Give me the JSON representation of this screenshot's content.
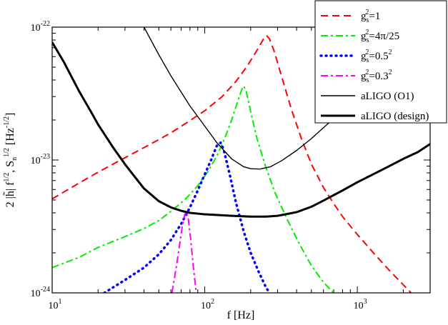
{
  "chart_data": {
    "type": "line",
    "title": "",
    "xscale": "log",
    "yscale": "log",
    "xlim": [
      10,
      3000
    ],
    "ylim": [
      1e-24,
      1e-22
    ],
    "xlabel": "f [Hz]",
    "ylabel": "2 |h̃| f^{1/2}, S_n^{1/2} [Hz^{-1/2}]",
    "ylabel_parts": {
      "p1": "2 |h̃| f",
      "e1": "1/2",
      "p2": ",  S",
      "s1": "n",
      "e2": "1/2",
      "p3": "  [Hz",
      "e3": "-1/2",
      "p4": "]"
    },
    "x_ticks": [
      {
        "value": 10,
        "base": "10",
        "exp": "1"
      },
      {
        "value": 100,
        "base": "10",
        "exp": "2"
      },
      {
        "value": 1000,
        "base": "10",
        "exp": "3"
      }
    ],
    "y_ticks": [
      {
        "value": 1e-24,
        "base": "10",
        "exp": "-24"
      },
      {
        "value": 1e-23,
        "base": "10",
        "exp": "-23"
      },
      {
        "value": 1e-22,
        "base": "10",
        "exp": "-22"
      }
    ],
    "legend_position": "top-right",
    "series": [
      {
        "name": "gs2=1",
        "label_base": "g",
        "label_sub": "s",
        "label_sup": "2",
        "label_rest": "=1",
        "color": "#ff0000",
        "style": "dashed",
        "points": [
          [
            10,
            5.1e-24
          ],
          [
            15,
            6.7e-24
          ],
          [
            20,
            8.1e-24
          ],
          [
            30,
            1.04e-23
          ],
          [
            40,
            1.24e-23
          ],
          [
            60,
            1.6e-23
          ],
          [
            80,
            1.98e-23
          ],
          [
            100,
            2.35e-23
          ],
          [
            130,
            3e-23
          ],
          [
            160,
            3.9e-23
          ],
          [
            190,
            5.1e-23
          ],
          [
            220,
            6.7e-23
          ],
          [
            245,
            8.3e-23
          ],
          [
            255,
            8.6e-23
          ],
          [
            265,
            8.2e-23
          ],
          [
            285,
            6.6e-23
          ],
          [
            320,
            4.2e-23
          ],
          [
            370,
            2.4e-23
          ],
          [
            430,
            1.45e-23
          ],
          [
            500,
            9.3e-24
          ],
          [
            600,
            6.2e-24
          ],
          [
            700,
            4.7e-24
          ],
          [
            800,
            3.75e-24
          ],
          [
            1000,
            2.75e-24
          ],
          [
            1300,
            1.95e-24
          ],
          [
            1600,
            1.5e-24
          ],
          [
            2000,
            1.15e-24
          ],
          [
            2250,
            1e-24
          ]
        ]
      },
      {
        "name": "gs2=4pi/25",
        "label_base": "g",
        "label_sub": "s",
        "label_sup": "2",
        "label_rest": "=4π/25",
        "color": "#00ee00",
        "style": "dashdot",
        "points": [
          [
            10,
            1.55e-24
          ],
          [
            15,
            1.85e-24
          ],
          [
            20,
            2.2e-24
          ],
          [
            30,
            2.65e-24
          ],
          [
            40,
            3.05e-24
          ],
          [
            50,
            3.5e-24
          ],
          [
            60,
            4.1e-24
          ],
          [
            75,
            5.1e-24
          ],
          [
            90,
            6.4e-24
          ],
          [
            105,
            8.2e-24
          ],
          [
            120,
            1.07e-23
          ],
          [
            135,
            1.45e-23
          ],
          [
            150,
            2e-23
          ],
          [
            165,
            2.8e-23
          ],
          [
            175,
            3.4e-23
          ],
          [
            180,
            3.6e-23
          ],
          [
            187,
            3.3e-23
          ],
          [
            200,
            2.3e-23
          ],
          [
            220,
            1.45e-23
          ],
          [
            250,
            9e-24
          ],
          [
            290,
            5.6e-24
          ],
          [
            350,
            3.5e-24
          ],
          [
            420,
            2.3e-24
          ],
          [
            500,
            1.6e-24
          ],
          [
            600,
            1.2e-24
          ],
          [
            700,
            1e-24
          ]
        ]
      },
      {
        "name": "gs2=0.5^2",
        "label_base": "g",
        "label_sub": "s",
        "label_sup": "2",
        "label_rest": "=0.5",
        "label_rest_sup": "2",
        "color": "#0000ff",
        "style": "dotted",
        "points": [
          [
            22,
            1e-24
          ],
          [
            30,
            1.25e-24
          ],
          [
            40,
            1.55e-24
          ],
          [
            50,
            1.95e-24
          ],
          [
            60,
            2.5e-24
          ],
          [
            70,
            3.3e-24
          ],
          [
            80,
            4.4e-24
          ],
          [
            90,
            5.9e-24
          ],
          [
            100,
            7.8e-24
          ],
          [
            110,
            1e-23
          ],
          [
            120,
            1.28e-23
          ],
          [
            127,
            1.35e-23
          ],
          [
            133,
            1.2e-23
          ],
          [
            145,
            8e-24
          ],
          [
            160,
            4.8e-24
          ],
          [
            180,
            2.9e-24
          ],
          [
            200,
            2e-24
          ],
          [
            225,
            1.45e-24
          ],
          [
            250,
            1.12e-24
          ],
          [
            265,
            1e-24
          ]
        ]
      },
      {
        "name": "gs2=0.3^2",
        "label_base": "g",
        "label_sub": "s",
        "label_sup": "2",
        "label_rest": "=0.3",
        "label_rest_sup": "2",
        "color": "#ff00ff",
        "style": "dashdot",
        "points": [
          [
            61,
            1e-24
          ],
          [
            65,
            1.55e-24
          ],
          [
            68,
            2.2e-24
          ],
          [
            71,
            3.1e-24
          ],
          [
            74,
            3.9e-24
          ],
          [
            76,
            4.1e-24
          ],
          [
            78,
            3.6e-24
          ],
          [
            81,
            2.5e-24
          ],
          [
            84,
            1.6e-24
          ],
          [
            88,
            1e-24
          ]
        ]
      },
      {
        "name": "aLIGO (O1)",
        "label_base": "aLIGO (O1)",
        "color": "#000000",
        "style": "solid-thin",
        "points": [
          [
            40,
            1e-22
          ],
          [
            50,
            6.2e-23
          ],
          [
            60,
            4.3e-23
          ],
          [
            70,
            3.25e-23
          ],
          [
            80,
            2.55e-23
          ],
          [
            100,
            1.8e-23
          ],
          [
            120,
            1.35e-23
          ],
          [
            150,
            1.02e-23
          ],
          [
            180,
            8.9e-24
          ],
          [
            200,
            8.6e-24
          ],
          [
            230,
            8.55e-24
          ],
          [
            270,
            8.9e-24
          ],
          [
            320,
            9.9e-24
          ],
          [
            400,
            1.18e-23
          ],
          [
            500,
            1.45e-23
          ],
          [
            600,
            1.75e-23
          ],
          [
            700,
            2.05e-23
          ],
          [
            800,
            2.35e-23
          ],
          [
            1000,
            3e-23
          ],
          [
            1200,
            3.6e-23
          ],
          [
            1500,
            4.5e-23
          ]
        ]
      },
      {
        "name": "aLIGO (design)",
        "label_base": "aLIGO (design)",
        "color": "#000000",
        "style": "solid-thick",
        "points": [
          [
            10,
            7.7e-23
          ],
          [
            12,
            5.4e-23
          ],
          [
            15,
            3.3e-23
          ],
          [
            18,
            2.3e-23
          ],
          [
            20,
            1.85e-23
          ],
          [
            25,
            1.25e-23
          ],
          [
            30,
            9.3e-24
          ],
          [
            35,
            7.4e-24
          ],
          [
            40,
            6.1e-24
          ],
          [
            50,
            4.9e-24
          ],
          [
            60,
            4.4e-24
          ],
          [
            70,
            4.15e-24
          ],
          [
            80,
            4e-24
          ],
          [
            100,
            3.9e-24
          ],
          [
            150,
            3.8e-24
          ],
          [
            200,
            3.75e-24
          ],
          [
            250,
            3.75e-24
          ],
          [
            300,
            3.8e-24
          ],
          [
            400,
            4.05e-24
          ],
          [
            500,
            4.45e-24
          ],
          [
            600,
            4.95e-24
          ],
          [
            800,
            5.9e-24
          ],
          [
            1000,
            6.8e-24
          ],
          [
            1500,
            8.6e-24
          ],
          [
            2000,
            1.02e-23
          ],
          [
            2500,
            1.15e-23
          ],
          [
            3000,
            1.32e-23
          ]
        ]
      }
    ]
  }
}
